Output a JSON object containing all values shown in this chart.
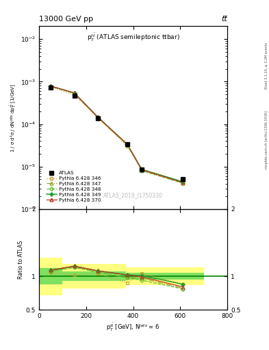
{
  "title_left": "13000 GeV pp",
  "title_right": "tt̅",
  "watermark": "ATLAS_2019_I1750330",
  "subplot_title": "p$_T^{t\\bar{t}}$ (ATLAS semileptonic ttbar)",
  "right_label": "Rivet 3.1.10, ≥ 3.2M events",
  "right_label2": "mcplots.cern.ch [arXiv:1306.3436]",
  "xlabel": "p$^{t\\bar{t}}_{T}$ [GeV], N$^{jets}$ = 6",
  "ylabel_main": "1 / σ d²σ / dN$^{obs}$ dp$^{t\\bar{t}}_{T}$ [1/GeV]",
  "ylabel_ratio": "Ratio to ATLAS",
  "xcenters": [
    50,
    150,
    250,
    375,
    437,
    612
  ],
  "atlas_y": [
    0.00072,
    0.00047,
    0.000135,
    3.3e-05,
    8.5e-06,
    5e-06
  ],
  "py346_y": [
    0.00075,
    0.00048,
    0.00014,
    3e-05,
    8.8e-06,
    4.4e-06
  ],
  "py347_y": [
    0.00077,
    0.000535,
    0.000143,
    3.25e-05,
    8.3e-06,
    4.1e-06
  ],
  "py348_y": [
    0.00077,
    0.00053,
    0.000143,
    3.25e-05,
    8e-06,
    4.05e-06
  ],
  "py349_y": [
    0.000785,
    0.00054,
    0.000146,
    3.35e-05,
    8.55e-06,
    4.4e-06
  ],
  "py370_y": [
    0.000785,
    0.00054,
    0.000146,
    3.35e-05,
    8.4e-06,
    4.2e-06
  ],
  "ratio_346": [
    1.05,
    1.02,
    1.04,
    0.9,
    1.04,
    0.88
  ],
  "ratio_347": [
    1.07,
    1.14,
    1.06,
    0.98,
    0.97,
    0.82
  ],
  "ratio_348": [
    1.07,
    1.13,
    1.06,
    0.98,
    0.94,
    0.81
  ],
  "ratio_349": [
    1.09,
    1.15,
    1.08,
    1.02,
    1.01,
    0.88
  ],
  "ratio_370": [
    1.09,
    1.15,
    1.08,
    1.02,
    0.99,
    0.84
  ],
  "band_yellow_xedges": [
    0,
    100,
    100,
    370,
    370,
    700
  ],
  "band_yellow_low": [
    0.72,
    0.72,
    0.82,
    0.82,
    0.87,
    0.87
  ],
  "band_yellow_high": [
    1.28,
    1.28,
    1.18,
    1.18,
    1.13,
    1.13
  ],
  "band_green_xedges": [
    0,
    100,
    100,
    370,
    370,
    700
  ],
  "band_green_low": [
    0.88,
    0.88,
    0.93,
    0.93,
    0.95,
    0.95
  ],
  "band_green_high": [
    1.12,
    1.12,
    1.07,
    1.07,
    1.05,
    1.05
  ],
  "ylim_main": [
    1e-06,
    0.02
  ],
  "ylim_ratio": [
    0.5,
    2.0
  ],
  "xlim": [
    0,
    800
  ],
  "color_346": "#c8a030",
  "color_347": "#a0a020",
  "color_348": "#60c030",
  "color_349": "#20a030",
  "color_370": "#c03020",
  "background": "#ffffff"
}
